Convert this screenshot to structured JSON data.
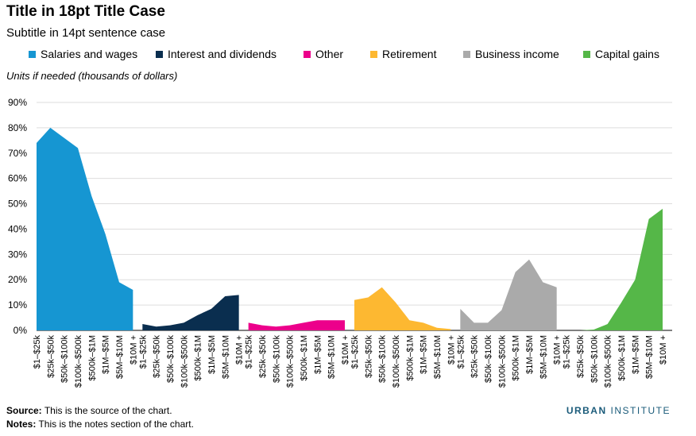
{
  "title": "Title in 18pt Title Case",
  "subtitle": "Subtitle in 14pt sentence case",
  "units": "Units if needed (thousands of dollars)",
  "footer": {
    "source_label": "Source:",
    "source_text": "This is the source of the chart.",
    "notes_label": "Notes:",
    "notes_text": "This is the notes section of the chart."
  },
  "logo": {
    "part1": "URBAN",
    "part2": "INSTITUTE"
  },
  "chart_data": {
    "type": "area",
    "title": "Title in 18pt Title Case",
    "subtitle": "Subtitle in 14pt sentence case",
    "ylabel": "Units if needed (thousands of dollars)",
    "ylim": [
      0,
      90
    ],
    "yticks": [
      "0%",
      "10%",
      "20%",
      "30%",
      "40%",
      "50%",
      "60%",
      "70%",
      "80%",
      "90%"
    ],
    "grid": true,
    "legend_position": "top",
    "categories": [
      "$1–$25k",
      "$25k–$50k",
      "$50k–$100k",
      "$100k–$500k",
      "$500k–$1M",
      "$1M–$5M",
      "$5M–$10M",
      "$10M +"
    ],
    "series": [
      {
        "name": "Salaries and wages",
        "color": "#1696d2",
        "values": [
          74,
          80,
          76,
          72,
          53,
          38,
          19,
          16
        ]
      },
      {
        "name": "Interest and dividends",
        "color": "#0a2e4f",
        "values": [
          2.5,
          1.5,
          2,
          3,
          6,
          8.5,
          13.5,
          14
        ]
      },
      {
        "name": "Other",
        "color": "#ec008b",
        "values": [
          3,
          2,
          1.5,
          2,
          3,
          4,
          4,
          4
        ]
      },
      {
        "name": "Retirement",
        "color": "#fdb831",
        "values": [
          12,
          13,
          17,
          11,
          4,
          3,
          1,
          0.5
        ]
      },
      {
        "name": "Business income",
        "color": "#aaaaaa",
        "values": [
          8.5,
          3,
          3,
          8,
          23,
          28,
          19,
          17
        ]
      },
      {
        "name": "Capital gains",
        "color": "#55b748",
        "values": [
          0,
          0,
          0.3,
          2.5,
          11,
          20,
          44,
          48
        ]
      }
    ]
  }
}
